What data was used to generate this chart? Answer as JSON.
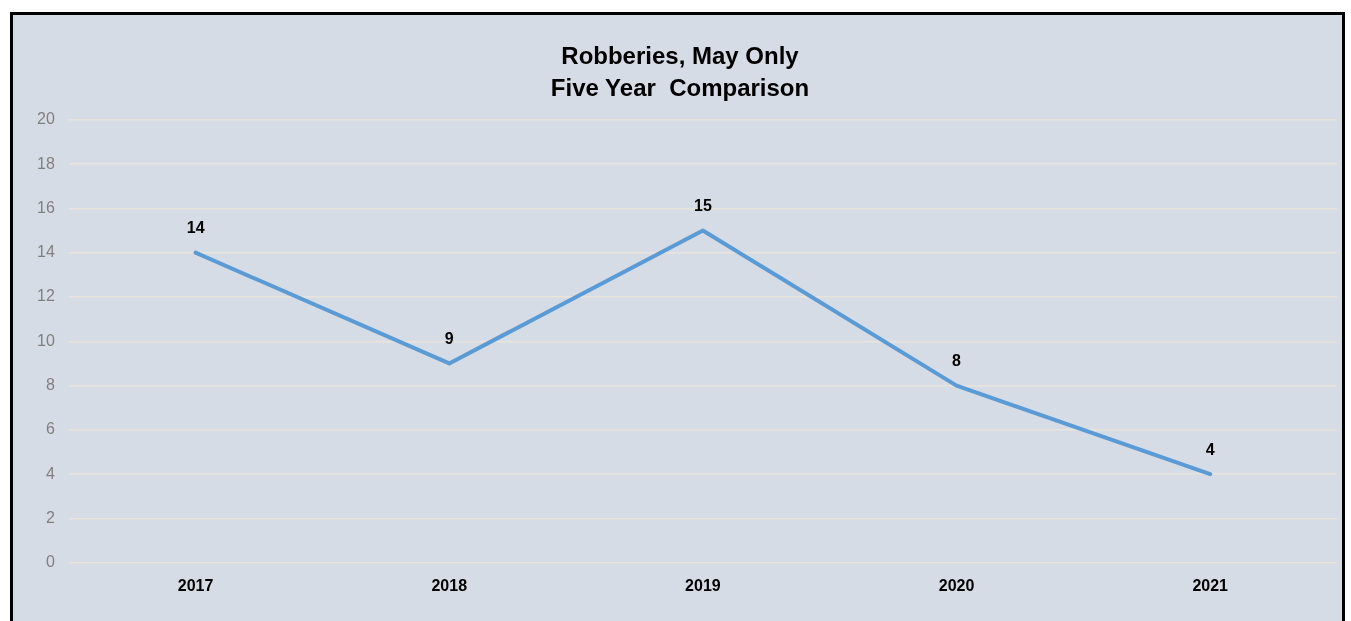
{
  "chart_data": {
    "type": "line",
    "title": [
      "Robberies, May Only",
      "Five Year  Comparison"
    ],
    "categories": [
      "2017",
      "2018",
      "2019",
      "2020",
      "2021"
    ],
    "values": [
      14,
      9,
      15,
      8,
      4
    ],
    "color": "#5b9bd5",
    "ylim": [
      0,
      20
    ],
    "yticks": [
      0,
      2,
      4,
      6,
      8,
      10,
      12,
      14,
      16,
      18,
      20
    ],
    "grid": "y",
    "data_labels": true,
    "legend": false,
    "marker": "none"
  }
}
